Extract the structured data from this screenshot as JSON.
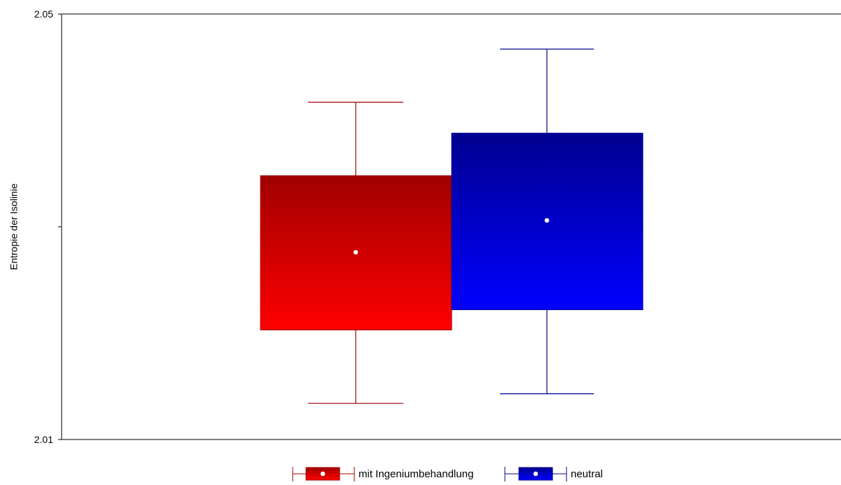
{
  "chart_data": {
    "type": "box",
    "ylabel": "Entropie der Isolinie",
    "ylim": [
      2.01,
      2.05
    ],
    "yticks": [
      2.01,
      2.03,
      2.05
    ],
    "ytick_labels": [
      "2.01",
      "",
      "2.05"
    ],
    "legend_position": "bottom-center",
    "grid": false,
    "series": [
      {
        "name": "mit Ingeniumbehandlung",
        "color": "#d40000",
        "color_top": "#a00000",
        "color_bottom": "#ff0000",
        "whisker_color": "#a00000",
        "whisker_low": 2.0134,
        "q1": 2.0203,
        "mean": 2.0276,
        "q3": 2.0348,
        "whisker_high": 2.0417
      },
      {
        "name": "neutral",
        "color": "#0000d0",
        "color_top": "#000090",
        "color_bottom": "#0000ff",
        "whisker_color": "#000090",
        "whisker_low": 2.0143,
        "q1": 2.0222,
        "mean": 2.0306,
        "q3": 2.0388,
        "whisker_high": 2.0467
      }
    ]
  }
}
